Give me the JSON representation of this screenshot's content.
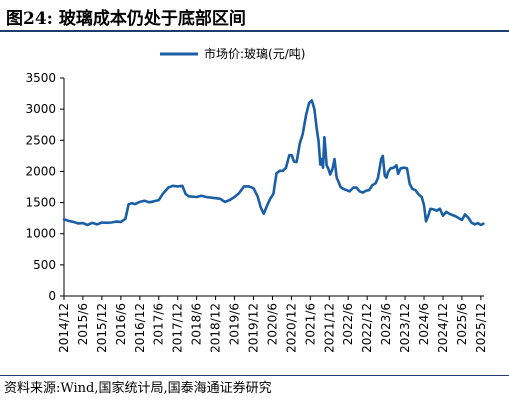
{
  "figure": {
    "title": "图24:  玻璃成本仍处于底部区间",
    "source": "资料来源:Wind,国家统计局,国泰海通证券研究"
  },
  "chart_data": {
    "type": "line",
    "series": [
      {
        "name": "市场价:玻璃(元/吨)",
        "color": "#1a5fa6",
        "points": [
          [
            "2014-12-01",
            1230
          ],
          [
            "2015-01-15",
            1205
          ],
          [
            "2015-03-01",
            1190
          ],
          [
            "2015-04-15",
            1165
          ],
          [
            "2015-06-01",
            1170
          ],
          [
            "2015-07-15",
            1140
          ],
          [
            "2015-09-01",
            1175
          ],
          [
            "2015-10-15",
            1150
          ],
          [
            "2015-12-01",
            1180
          ],
          [
            "2016-01-15",
            1175
          ],
          [
            "2016-03-01",
            1180
          ],
          [
            "2016-04-15",
            1195
          ],
          [
            "2016-06-01",
            1190
          ],
          [
            "2016-07-15",
            1240
          ],
          [
            "2016-08-15",
            1470
          ],
          [
            "2016-09-15",
            1490
          ],
          [
            "2016-10-15",
            1475
          ],
          [
            "2016-12-01",
            1510
          ],
          [
            "2017-01-15",
            1530
          ],
          [
            "2017-03-01",
            1505
          ],
          [
            "2017-04-15",
            1520
          ],
          [
            "2017-06-01",
            1540
          ],
          [
            "2017-07-15",
            1650
          ],
          [
            "2017-09-01",
            1740
          ],
          [
            "2017-10-15",
            1770
          ],
          [
            "2017-12-01",
            1760
          ],
          [
            "2018-01-15",
            1770
          ],
          [
            "2018-02-15",
            1640
          ],
          [
            "2018-03-15",
            1600
          ],
          [
            "2018-06-01",
            1590
          ],
          [
            "2018-07-15",
            1610
          ],
          [
            "2018-09-01",
            1590
          ],
          [
            "2018-10-15",
            1580
          ],
          [
            "2018-12-01",
            1570
          ],
          [
            "2019-01-15",
            1560
          ],
          [
            "2019-03-01",
            1510
          ],
          [
            "2019-04-15",
            1540
          ],
          [
            "2019-06-01",
            1590
          ],
          [
            "2019-07-15",
            1650
          ],
          [
            "2019-09-01",
            1760
          ],
          [
            "2019-10-15",
            1760
          ],
          [
            "2019-12-01",
            1730
          ],
          [
            "2020-01-10",
            1600
          ],
          [
            "2020-02-10",
            1420
          ],
          [
            "2020-03-10",
            1320
          ],
          [
            "2020-04-10",
            1450
          ],
          [
            "2020-05-10",
            1560
          ],
          [
            "2020-06-10",
            1640
          ],
          [
            "2020-07-10",
            1970
          ],
          [
            "2020-08-10",
            2010
          ],
          [
            "2020-09-10",
            2010
          ],
          [
            "2020-10-10",
            2060
          ],
          [
            "2020-11-10",
            2260
          ],
          [
            "2020-12-05",
            2260
          ],
          [
            "2020-12-25",
            2160
          ],
          [
            "2021-01-20",
            2150
          ],
          [
            "2021-02-20",
            2450
          ],
          [
            "2021-03-20",
            2600
          ],
          [
            "2021-04-20",
            2900
          ],
          [
            "2021-05-20",
            3100
          ],
          [
            "2021-06-15",
            3140
          ],
          [
            "2021-07-10",
            3000
          ],
          [
            "2021-08-01",
            2700
          ],
          [
            "2021-08-20",
            2480
          ],
          [
            "2021-09-05",
            2110
          ],
          [
            "2021-09-20",
            2200
          ],
          [
            "2021-10-01",
            2060
          ],
          [
            "2021-10-15",
            2550
          ],
          [
            "2021-10-25",
            2350
          ],
          [
            "2021-11-05",
            2100
          ],
          [
            "2021-11-20",
            2050
          ],
          [
            "2021-12-10",
            1950
          ],
          [
            "2022-01-01",
            2040
          ],
          [
            "2022-01-20",
            2200
          ],
          [
            "2022-02-10",
            1900
          ],
          [
            "2022-03-01",
            1830
          ],
          [
            "2022-03-20",
            1750
          ],
          [
            "2022-04-15",
            1720
          ],
          [
            "2022-05-15",
            1700
          ],
          [
            "2022-06-15",
            1680
          ],
          [
            "2022-07-20",
            1740
          ],
          [
            "2022-08-20",
            1740
          ],
          [
            "2022-09-20",
            1680
          ],
          [
            "2022-10-20",
            1660
          ],
          [
            "2022-11-20",
            1690
          ],
          [
            "2022-12-20",
            1700
          ],
          [
            "2023-01-20",
            1780
          ],
          [
            "2023-02-20",
            1810
          ],
          [
            "2023-03-15",
            1900
          ],
          [
            "2023-04-15",
            2200
          ],
          [
            "2023-05-01",
            2250
          ],
          [
            "2023-05-20",
            1930
          ],
          [
            "2023-06-05",
            1900
          ],
          [
            "2023-06-20",
            1990
          ],
          [
            "2023-07-15",
            2050
          ],
          [
            "2023-08-15",
            2060
          ],
          [
            "2023-09-10",
            2100
          ],
          [
            "2023-09-25",
            1960
          ],
          [
            "2023-10-20",
            2050
          ],
          [
            "2023-11-20",
            2060
          ],
          [
            "2023-12-20",
            2050
          ],
          [
            "2024-01-15",
            1800
          ],
          [
            "2024-02-10",
            1720
          ],
          [
            "2024-03-10",
            1700
          ],
          [
            "2024-04-10",
            1630
          ],
          [
            "2024-05-10",
            1590
          ],
          [
            "2024-06-01",
            1460
          ],
          [
            "2024-06-20",
            1200
          ],
          [
            "2024-07-10",
            1280
          ],
          [
            "2024-08-01",
            1400
          ],
          [
            "2024-09-01",
            1390
          ],
          [
            "2024-10-01",
            1370
          ],
          [
            "2024-11-01",
            1400
          ],
          [
            "2024-12-01",
            1290
          ],
          [
            "2025-01-01",
            1350
          ],
          [
            "2025-02-01",
            1320
          ],
          [
            "2025-03-01",
            1300
          ],
          [
            "2025-04-01",
            1280
          ],
          [
            "2025-05-01",
            1250
          ],
          [
            "2025-06-01",
            1220
          ],
          [
            "2025-07-01",
            1310
          ],
          [
            "2025-08-01",
            1260
          ],
          [
            "2025-09-01",
            1180
          ],
          [
            "2025-10-01",
            1150
          ],
          [
            "2025-11-01",
            1170
          ],
          [
            "2025-12-01",
            1140
          ],
          [
            "2025-12-25",
            1160
          ]
        ]
      }
    ],
    "y_axis": {
      "min": 0,
      "max": 3500,
      "ticks": [
        "0",
        "500",
        "1000",
        "1500",
        "2000",
        "2500",
        "3000",
        "3500"
      ]
    },
    "x_axis": {
      "range": [
        "2014-12-01",
        "2025-12-31"
      ],
      "ticks": [
        [
          "2014-12-01",
          "2014/12"
        ],
        [
          "2015-06-01",
          "2015/6"
        ],
        [
          "2015-12-01",
          "2015/12"
        ],
        [
          "2016-06-01",
          "2016/6"
        ],
        [
          "2016-12-01",
          "2016/12"
        ],
        [
          "2017-06-01",
          "2017/6"
        ],
        [
          "2017-12-01",
          "2017/12"
        ],
        [
          "2018-06-01",
          "2018/6"
        ],
        [
          "2018-12-01",
          "2018/12"
        ],
        [
          "2019-06-01",
          "2019/6"
        ],
        [
          "2019-12-01",
          "2019/12"
        ],
        [
          "2020-06-01",
          "2020/6"
        ],
        [
          "2020-12-01",
          "2020/12"
        ],
        [
          "2021-06-01",
          "2021/6"
        ],
        [
          "2021-12-01",
          "2021/12"
        ],
        [
          "2022-06-01",
          "2022/6"
        ],
        [
          "2022-12-01",
          "2022/12"
        ],
        [
          "2023-06-01",
          "2023/6"
        ],
        [
          "2023-12-01",
          "2023/12"
        ],
        [
          "2024-06-01",
          "2024/6"
        ],
        [
          "2024-12-01",
          "2024/12"
        ],
        [
          "2025-06-01",
          "2025/6"
        ],
        [
          "2025-12-01",
          "2025/12"
        ]
      ]
    },
    "grid": false,
    "legend": {
      "position": "top-center",
      "entries": [
        "市场价:玻璃(元/吨)"
      ]
    }
  }
}
